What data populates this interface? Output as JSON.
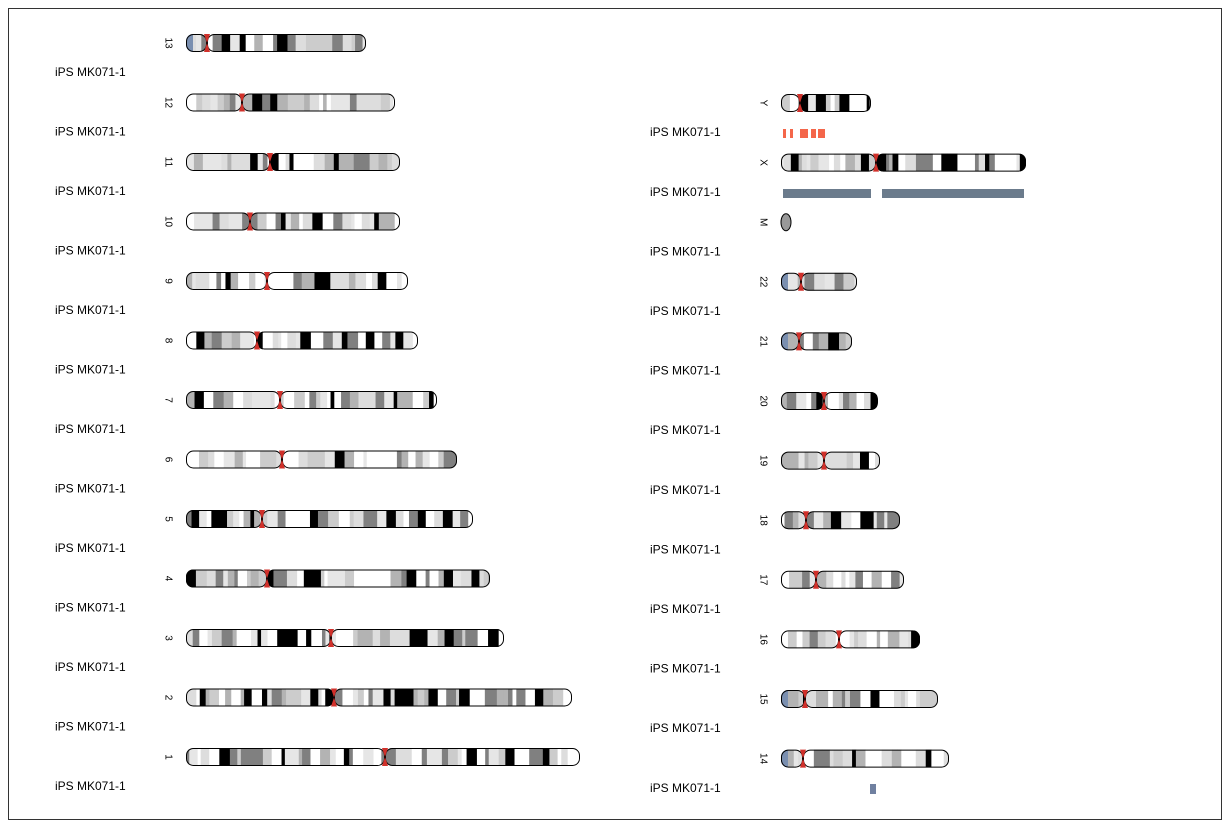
{
  "chromosomes": {
    "left": [
      "13",
      "12",
      "11",
      "10",
      "9",
      "8",
      "7",
      "6",
      "5",
      "4",
      "3",
      "2",
      "1"
    ],
    "right": [
      "Y",
      "X",
      "M",
      "22",
      "21",
      "20",
      "19",
      "18",
      "17",
      "16",
      "15",
      "14"
    ]
  },
  "samples": {
    "left": [
      "iPS MK071-1",
      "iPS MK071-1",
      "iPS MK071-1",
      "iPS MK071-1",
      "iPS MK071-1",
      "iPS MK071-1",
      "iPS MK071-1",
      "iPS MK071-1",
      "iPS MK071-1",
      "iPS MK071-1",
      "iPS MK071-1",
      "iPS MK071-1",
      "iPS MK071-1"
    ],
    "right": [
      "iPS MK071-1",
      "iPS MK071-1",
      "iPS MK071-1",
      "iPS MK071-1",
      "iPS MK071-1",
      "iPS MK071-1",
      "iPS MK071-1",
      "iPS MK071-1",
      "iPS MK071-1",
      "iPS MK071-1",
      "iPS MK071-1",
      "iPS MK071-1"
    ]
  }
}
